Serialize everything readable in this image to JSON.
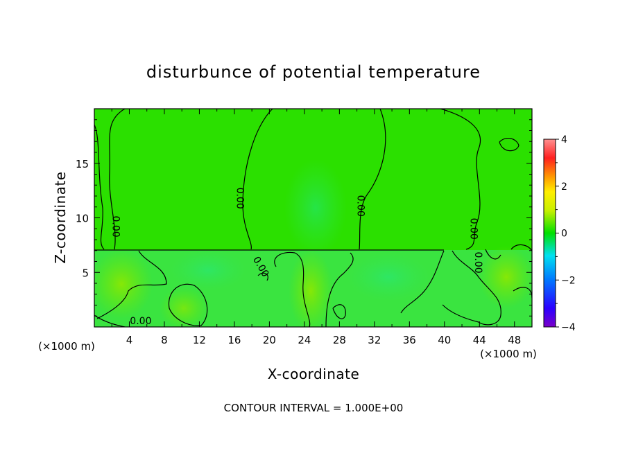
{
  "chart_data": {
    "type": "heatmap",
    "title": "disturbunce of potential temperature",
    "xlabel": "X-coordinate",
    "ylabel": "Z-coordinate",
    "x_unit": "(×1000 m)",
    "y_unit": "(×1000 m)",
    "xlim": [
      0,
      50
    ],
    "ylim": [
      0,
      20
    ],
    "xticks": [
      4,
      8,
      12,
      16,
      20,
      24,
      28,
      32,
      36,
      40,
      44,
      48
    ],
    "yticks": [
      5,
      10,
      15
    ],
    "colorbar": {
      "min": -4,
      "max": 4,
      "ticks": [
        -4,
        -2,
        0,
        2,
        4
      ]
    },
    "contour_levels": [
      0
    ],
    "contour_labels": [
      {
        "text": "0.00",
        "x": 2.4,
        "z": 9.2,
        "rot": 90
      },
      {
        "text": "0.00",
        "x": 16.6,
        "z": 11.8,
        "rot": 90
      },
      {
        "text": "0.00",
        "x": 30.4,
        "z": 11.1,
        "rot": 90
      },
      {
        "text": "0.00",
        "x": 43.3,
        "z": 9.0,
        "rot": 90
      },
      {
        "text": "0.00",
        "x": 43.8,
        "z": 5.9,
        "rot": 90
      },
      {
        "text": "0.00",
        "x": 19.0,
        "z": 5.5,
        "rot": 60
      },
      {
        "text": "0.00",
        "x": 5.3,
        "z": 0.5,
        "rot": 0
      }
    ],
    "footer": "CONTOUR INTERVAL = 1.000E+00"
  }
}
